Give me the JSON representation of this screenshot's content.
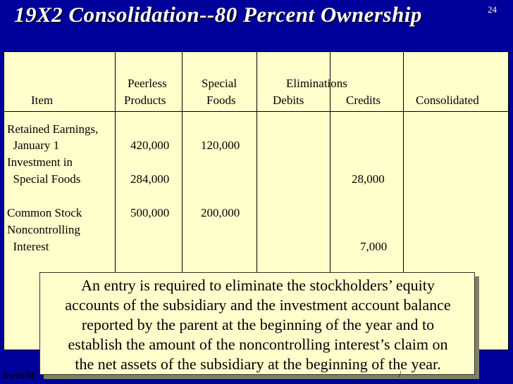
{
  "slide": {
    "title": "19X2 Consolidation--80 Percent Ownership",
    "number": "24"
  },
  "table": {
    "headers": {
      "item": "Item",
      "peerless_line1": "Peerless",
      "peerless_line2": "Products",
      "special_line1": "Special",
      "special_line2": "Foods",
      "eliminations": "Eliminations",
      "debits": "Debits",
      "credits": "Credits",
      "consolidated": "Consolidated"
    },
    "rows": [
      {
        "item_line1": "Retained Earnings,",
        "item_line2": "  January 1",
        "peerless": "420,000",
        "special": "120,000",
        "debits": "",
        "credits": "",
        "consolidated": ""
      },
      {
        "item_line1": "Investment in",
        "item_line2": "  Special Foods",
        "peerless": "284,000",
        "special": "",
        "debits": "",
        "credits": "28,000",
        "consolidated": ""
      },
      {
        "item_line1": "Common Stock",
        "item_line2": "",
        "peerless": "500,000",
        "special": "200,000",
        "debits": "",
        "credits": "",
        "consolidated": ""
      },
      {
        "item_line1": "Noncontrolling",
        "item_line2": "  Interest",
        "peerless": "",
        "special": "",
        "debits": "",
        "credits": "7,000",
        "consolidated": ""
      }
    ]
  },
  "callout": {
    "lines": [
      "An entry is required to eliminate the stockholders’ equity",
      "accounts of the subsidiary and the investment account balance",
      "reported by the parent at the beginning of the year and to",
      "establish the amount of the noncontrolling interest’s claim on",
      "the net assets of the subsidiary at the beginning of the year."
    ]
  },
  "footer": {
    "text": "Irwin/M",
    "mark": "/"
  }
}
